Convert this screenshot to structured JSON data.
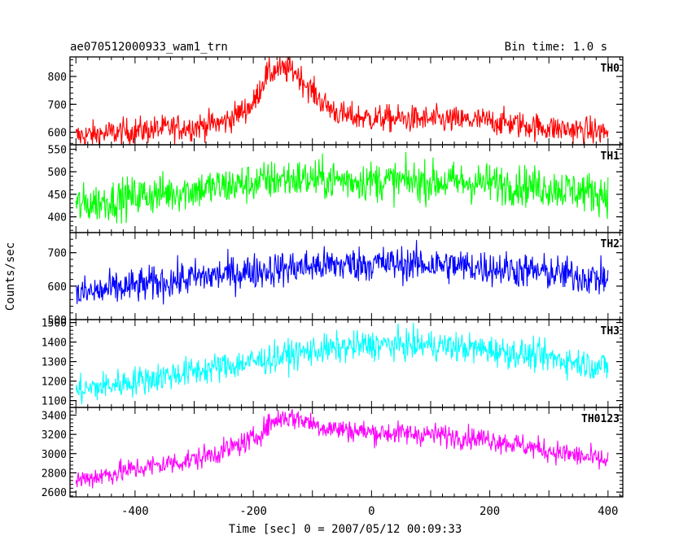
{
  "chart_data": {
    "type": "line",
    "title": "ae070512000933_wam1_trn",
    "subtitle": "Bin time: 1.0 s",
    "xlabel": "Time [sec] 0 = 2007/05/12 00:09:33",
    "ylabel": "Counts/sec",
    "xlim": [
      -510,
      425
    ],
    "xticks": [
      -400,
      -200,
      0,
      200,
      400
    ],
    "grid": false,
    "colors": {
      "TH0": "#ff0000",
      "TH1": "#00ff00",
      "TH2": "#0000ff",
      "TH3": "#00ffff",
      "TH0123": "#ff00ff"
    },
    "panels": [
      {
        "name": "TH0",
        "ylim": [
          555,
          870
        ],
        "yticks": [
          600,
          700,
          800
        ],
        "noise": 35,
        "trend": [
          [
            -500,
            585
          ],
          [
            -400,
            605
          ],
          [
            -300,
            620
          ],
          [
            -250,
            635
          ],
          [
            -200,
            700
          ],
          [
            -180,
            800
          ],
          [
            -160,
            825
          ],
          [
            -130,
            820
          ],
          [
            -110,
            770
          ],
          [
            -80,
            700
          ],
          [
            -50,
            660
          ],
          [
            0,
            650
          ],
          [
            100,
            645
          ],
          [
            200,
            640
          ],
          [
            300,
            615
          ],
          [
            400,
            600
          ]
        ]
      },
      {
        "name": "TH1",
        "ylim": [
          365,
          560
        ],
        "yticks": [
          400,
          450,
          500,
          550
        ],
        "noise": 32,
        "trend": [
          [
            -500,
            425
          ],
          [
            -400,
            445
          ],
          [
            -300,
            460
          ],
          [
            -200,
            475
          ],
          [
            -150,
            485
          ],
          [
            0,
            480
          ],
          [
            100,
            478
          ],
          [
            200,
            475
          ],
          [
            300,
            465
          ],
          [
            400,
            450
          ]
        ]
      },
      {
        "name": "TH2",
        "ylim": [
          500,
          760
        ],
        "yticks": [
          500,
          600,
          700
        ],
        "noise": 38,
        "trend": [
          [
            -500,
            575
          ],
          [
            -400,
            600
          ],
          [
            -300,
            625
          ],
          [
            -200,
            645
          ],
          [
            -100,
            660
          ],
          [
            0,
            668
          ],
          [
            100,
            665
          ],
          [
            200,
            655
          ],
          [
            300,
            640
          ],
          [
            400,
            620
          ]
        ]
      },
      {
        "name": "TH3",
        "ylim": [
          1065,
          1515
        ],
        "yticks": [
          1100,
          1200,
          1300,
          1400,
          1500
        ],
        "noise": 55,
        "trend": [
          [
            -500,
            1150
          ],
          [
            -400,
            1200
          ],
          [
            -300,
            1250
          ],
          [
            -200,
            1300
          ],
          [
            -100,
            1355
          ],
          [
            0,
            1385
          ],
          [
            100,
            1385
          ],
          [
            200,
            1360
          ],
          [
            300,
            1320
          ],
          [
            400,
            1270
          ]
        ]
      },
      {
        "name": "TH0123",
        "ylim": [
          2550,
          3480
        ],
        "yticks": [
          2600,
          2800,
          3000,
          3200,
          3400
        ],
        "noise": 85,
        "trend": [
          [
            -500,
            2720
          ],
          [
            -400,
            2840
          ],
          [
            -300,
            2940
          ],
          [
            -250,
            3030
          ],
          [
            -200,
            3150
          ],
          [
            -170,
            3320
          ],
          [
            -150,
            3380
          ],
          [
            -120,
            3360
          ],
          [
            -80,
            3270
          ],
          [
            0,
            3220
          ],
          [
            100,
            3200
          ],
          [
            200,
            3150
          ],
          [
            300,
            3030
          ],
          [
            400,
            2920
          ]
        ]
      }
    ]
  }
}
